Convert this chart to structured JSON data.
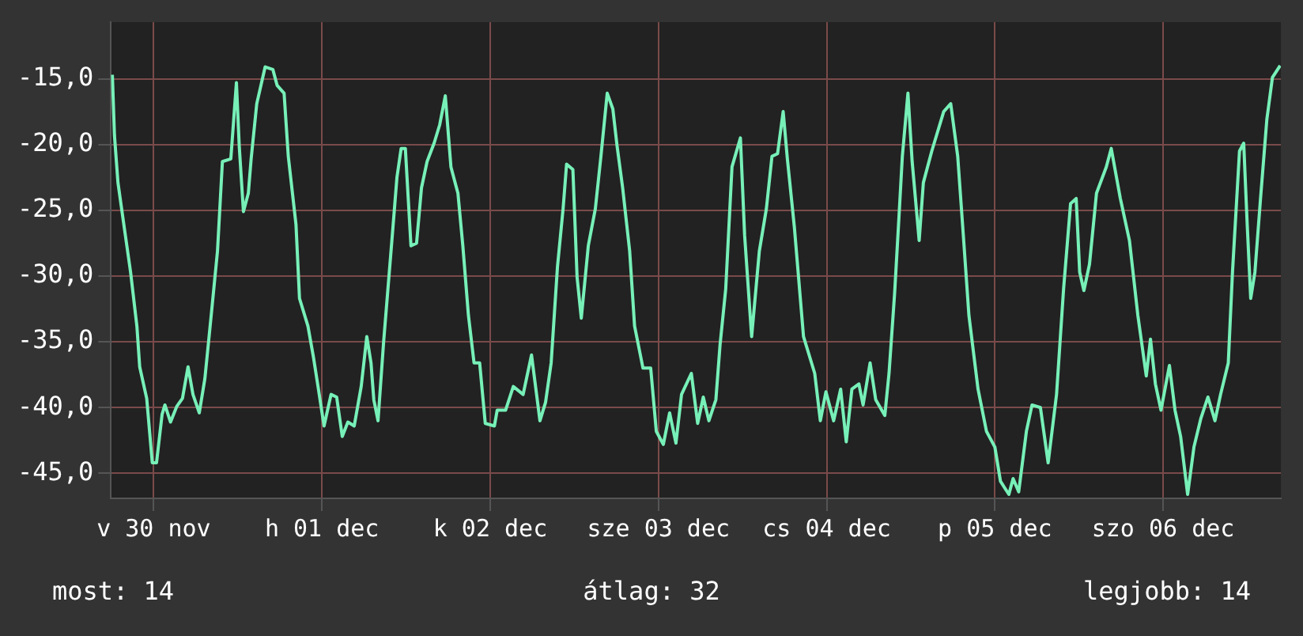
{
  "chart_data": {
    "type": "line",
    "x": [
      "--11-30T06:06",
      "--11-30T06:24",
      "--11-30T06:54",
      "--11-30T07:54",
      "--11-30T08:42",
      "--11-30T09:36",
      "--11-30T10:00",
      "--11-30T11:00",
      "--11-30T11:48",
      "--11-30T12:24",
      "--11-30T13:12",
      "--11-30T13:36",
      "--11-30T14:24",
      "--11-30T15:18",
      "--11-30T16:06",
      "--11-30T16:54",
      "--11-30T17:36",
      "--11-30T18:30",
      "--11-30T19:18",
      "--11-30T20:12",
      "--11-30T21:06",
      "--11-30T21:48",
      "--11-30T23:00",
      "--11-30T23:48",
      "--12-01T00:12",
      "--12-01T00:48",
      "--12-01T01:30",
      "--12-01T01:54",
      "--12-01T02:42",
      "--12-01T03:54",
      "--12-01T05:00",
      "--12-01T05:36",
      "--12-01T06:36",
      "--12-01T07:12",
      "--12-01T08:18",
      "--12-01T08:48",
      "--12-01T10:00",
      "--12-01T10:48",
      "--12-01T11:30",
      "--12-01T12:18",
      "--12-01T13:18",
      "--12-01T14:06",
      "--12-01T14:54",
      "--12-01T15:42",
      "--12-01T16:36",
      "--12-01T17:36",
      "--12-01T18:24",
      "--12-01T19:00",
      "--12-01T19:24",
      "--12-01T20:00",
      "--12-01T20:48",
      "--12-01T22:06",
      "--12-01T22:42",
      "--12-01T23:18",
      "--12-01T23:54",
      "--12-02T00:42",
      "--12-02T01:30",
      "--12-02T02:12",
      "--12-02T03:00",
      "--12-02T04:00",
      "--12-02T04:48",
      "--12-02T05:36",
      "--12-02T06:24",
      "--12-02T07:24",
      "--12-02T08:06",
      "--12-02T08:54",
      "--12-02T09:42",
      "--12-02T10:30",
      "--12-02T11:18",
      "--12-02T12:36",
      "--12-02T13:00",
      "--12-02T14:12",
      "--12-02T15:18",
      "--12-02T16:42",
      "--12-02T17:54",
      "--12-02T19:06",
      "--12-02T19:54",
      "--12-02T20:42",
      "--12-02T21:36",
      "--12-02T22:24",
      "--12-02T22:54",
      "--12-02T23:48",
      "--12-03T00:24",
      "--12-03T01:00",
      "--12-03T02:00",
      "--12-03T03:00",
      "--12-03T03:48",
      "--12-03T04:42",
      "--12-03T05:30",
      "--12-03T06:06",
      "--12-03T06:54",
      "--12-03T07:54",
      "--12-03T08:36",
      "--12-03T09:48",
      "--12-03T10:54",
      "--12-03T11:42",
      "--12-03T12:42",
      "--12-03T13:36",
      "--12-03T14:30",
      "--12-03T15:18",
      "--12-03T16:42",
      "--12-03T17:36",
      "--12-03T18:24",
      "--12-03T19:12",
      "--12-03T20:12",
      "--12-03T20:48",
      "--12-03T21:36",
      "--12-03T22:30",
      "--12-03T23:42",
      "--12-04T00:18",
      "--12-04T01:18",
      "--12-04T02:24",
      "--12-04T03:24",
      "--12-04T04:12",
      "--12-04T05:00",
      "--12-04T05:48",
      "--12-04T06:24",
      "--12-04T07:24",
      "--12-04T08:42",
      "--12-04T10:18",
      "--12-04T11:06",
      "--12-04T11:54",
      "--12-04T13:00",
      "--12-04T14:00",
      "--12-04T14:48",
      "--12-04T15:36",
      "--12-04T16:36",
      "--12-04T17:12",
      "--12-04T18:12",
      "--12-04T19:00",
      "--12-04T20:18",
      "--12-04T20:54",
      "--12-04T21:42",
      "--12-04T22:18",
      "--12-04T22:48",
      "--12-04T23:36",
      "--12-05T00:12",
      "--12-05T01:12",
      "--12-05T01:48",
      "--12-05T03:00",
      "--12-05T04:42",
      "--12-05T05:42",
      "--12-05T06:42",
      "--12-05T07:30",
      "--12-05T08:18",
      "--12-05T09:36",
      "--12-05T10:48",
      "--12-05T12:00",
      "--12-05T12:48",
      "--12-05T14:00",
      "--12-05T14:36",
      "--12-05T15:24",
      "--12-05T16:30",
      "--12-05T17:18",
      "--12-05T18:30",
      "--12-05T19:36",
      "--12-05T20:48",
      "--12-05T21:48",
      "--12-05T22:48",
      "--12-05T23:36",
      "--12-06T00:06",
      "--12-06T00:42",
      "--12-06T01:30",
      "--12-06T02:30",
      "--12-06T03:54",
      "--12-06T04:36",
      "--12-06T05:54",
      "--12-06T07:12",
      "--12-06T08:24",
      "--12-06T09:36",
      "--12-06T10:12",
      "--12-06T10:54",
      "--12-06T11:42",
      "--12-06T12:54",
      "--12-06T13:42",
      "--12-06T14:30",
      "--12-06T15:30",
      "--12-06T16:24",
      "--12-06T17:24",
      "--12-06T18:24",
      "--12-06T19:24",
      "--12-06T20:12",
      "--12-06T21:18",
      "--12-06T21:54",
      "--12-06T22:54",
      "--12-06T23:30",
      "--12-07T00:00",
      "--12-07T00:30",
      "--12-07T01:06",
      "--12-07T01:54",
      "--12-07T02:48",
      "--12-07T03:36",
      "--12-07T04:42"
    ],
    "series": [
      {
        "color": "#77f0b8",
        "values": [
          -14.7,
          -19.3,
          -22.9,
          -26.7,
          -29.7,
          -33.8,
          -36.9,
          -39.3,
          -44.2,
          -44.2,
          -40.5,
          -39.8,
          -41.1,
          -39.9,
          -39.3,
          -36.9,
          -39.0,
          -40.4,
          -37.8,
          -33.0,
          -28.1,
          -21.3,
          -21.1,
          -15.3,
          -20.1,
          -25.1,
          -23.7,
          -21.1,
          -16.9,
          -14.1,
          -14.3,
          -15.5,
          -16.1,
          -20.9,
          -26.1,
          -31.7,
          -33.8,
          -36.2,
          -38.6,
          -41.4,
          -39.0,
          -39.2,
          -42.2,
          -41.1,
          -41.4,
          -38.4,
          -34.6,
          -36.6,
          -39.4,
          -41.0,
          -35.0,
          -26.5,
          -22.5,
          -20.3,
          -20.3,
          -27.7,
          -27.5,
          -23.3,
          -21.3,
          -19.9,
          -18.5,
          -16.3,
          -21.7,
          -23.7,
          -27.7,
          -33.0,
          -36.6,
          -36.6,
          -41.2,
          -41.4,
          -40.2,
          -40.2,
          -38.4,
          -39.0,
          -36.0,
          -41.0,
          -39.6,
          -36.6,
          -29.3,
          -24.9,
          -21.5,
          -21.9,
          -30.1,
          -33.2,
          -27.7,
          -24.9,
          -20.9,
          -16.1,
          -17.3,
          -20.1,
          -23.3,
          -28.1,
          -33.8,
          -37.0,
          -37.0,
          -41.8,
          -42.8,
          -40.4,
          -42.7,
          -39.0,
          -37.4,
          -41.2,
          -39.2,
          -41.0,
          -39.4,
          -35.2,
          -31.0,
          -21.7,
          -19.5,
          -26.9,
          -34.6,
          -28.1,
          -24.9,
          -20.9,
          -20.7,
          -17.5,
          -21.1,
          -26.3,
          -34.6,
          -37.4,
          -41.0,
          -38.8,
          -41.0,
          -38.6,
          -42.6,
          -38.6,
          -38.2,
          -39.8,
          -36.6,
          -39.4,
          -40.6,
          -37.4,
          -31.3,
          -25.7,
          -20.9,
          -16.1,
          -21.3,
          -27.3,
          -22.9,
          -20.5,
          -17.5,
          -16.9,
          -20.9,
          -26.9,
          -33.0,
          -38.6,
          -41.8,
          -43.0,
          -45.6,
          -46.6,
          -45.4,
          -46.4,
          -41.8,
          -39.8,
          -40.0,
          -44.2,
          -39.0,
          -31.0,
          -24.5,
          -24.1,
          -29.7,
          -31.1,
          -29.1,
          -23.7,
          -21.7,
          -20.3,
          -24.1,
          -27.3,
          -33.0,
          -37.6,
          -34.8,
          -38.2,
          -40.2,
          -36.8,
          -40.2,
          -42.2,
          -46.6,
          -43.0,
          -40.8,
          -39.2,
          -41.0,
          -39.0,
          -36.6,
          -29.7,
          -20.5,
          -19.9,
          -26.1,
          -31.7,
          -29.7,
          -24.1,
          -18.1,
          -14.9,
          -14.0
        ]
      }
    ],
    "xlim": [
      "--11-30T05:54",
      "--12-07T04:48"
    ],
    "xticks": [
      {
        "value": "--11-30T12:00",
        "label": "v 30 nov"
      },
      {
        "value": "--12-01T12:00",
        "label": "h 01 dec"
      },
      {
        "value": "--12-02T12:00",
        "label": "k 02 dec"
      },
      {
        "value": "--12-03T12:00",
        "label": "sze 03 dec"
      },
      {
        "value": "--12-04T12:00",
        "label": "cs 04 dec"
      },
      {
        "value": "--12-05T12:00",
        "label": "p 05 dec"
      },
      {
        "value": "--12-06T12:00",
        "label": "szo 06 dec"
      }
    ],
    "ylim": [
      -46.9,
      -10.7
    ],
    "yticks": [
      {
        "value": -45,
        "label": "-45,0"
      },
      {
        "value": -40,
        "label": "-40,0"
      },
      {
        "value": -35,
        "label": "-35,0"
      },
      {
        "value": -30,
        "label": "-30,0"
      },
      {
        "value": -25,
        "label": "-25,0"
      },
      {
        "value": -20,
        "label": "-20,0"
      },
      {
        "value": -15,
        "label": "-15,0"
      }
    ],
    "grid": true,
    "marker": "none",
    "line_style": "solid",
    "annotations": [
      "most: 14",
      "átlag: 32",
      "legjobb: 14"
    ]
  }
}
